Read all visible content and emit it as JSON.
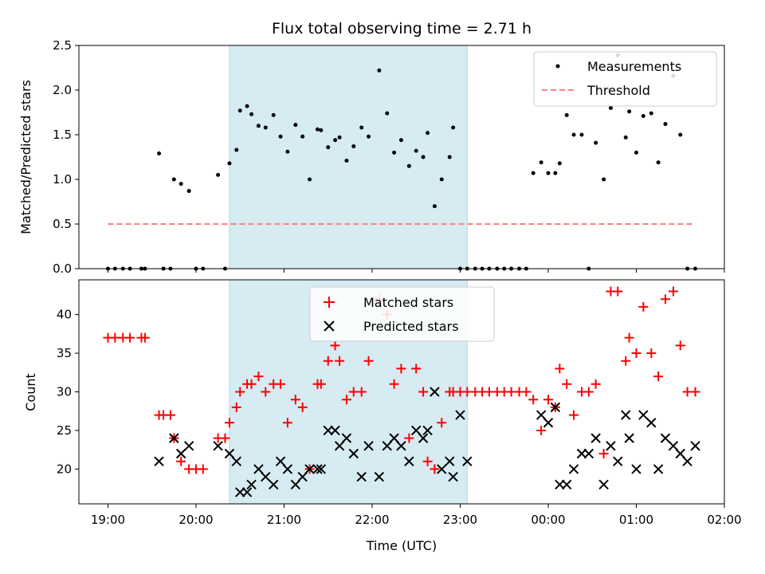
{
  "chart_data": [
    {
      "type": "scatter",
      "title": "Flux total observing time = 2.71 h",
      "xlabel": "",
      "ylabel": "Matched/Predicted stars",
      "ylim": [
        0,
        2.5
      ],
      "yticks": [
        "0.0",
        "0.5",
        "1.0",
        "1.5",
        "2.0",
        "2.5"
      ],
      "highlight_span": {
        "start": 20.38,
        "end": 23.08,
        "color": "#add8e6"
      },
      "legend_placement": "top-right",
      "series": [
        {
          "name": "Measurements",
          "color": "#000000",
          "x": [
            19.0,
            19.08,
            19.17,
            19.25,
            19.38,
            19.42,
            19.58,
            19.63,
            19.71,
            19.75,
            19.83,
            19.92,
            20.0,
            20.08,
            20.25,
            20.33,
            20.38,
            20.46,
            20.5,
            20.58,
            20.63,
            20.71,
            20.79,
            20.88,
            20.96,
            21.04,
            21.13,
            21.21,
            21.29,
            21.38,
            21.42,
            21.5,
            21.58,
            21.63,
            21.71,
            21.79,
            21.88,
            21.96,
            22.08,
            22.17,
            22.25,
            22.33,
            22.42,
            22.5,
            22.58,
            22.63,
            22.71,
            22.79,
            22.88,
            22.92,
            23.0,
            23.08,
            23.17,
            23.25,
            23.33,
            23.42,
            23.5,
            23.58,
            23.67,
            23.75,
            23.83,
            23.92,
            24.0,
            24.08,
            24.13,
            24.21,
            24.29,
            24.38,
            24.46,
            24.54,
            24.63,
            24.71,
            24.79,
            24.88,
            24.92,
            25.0,
            25.08,
            25.17,
            25.25,
            25.33,
            25.42,
            25.5,
            25.58,
            25.67
          ],
          "y": [
            0,
            0,
            0,
            0,
            0,
            0,
            1.29,
            0,
            0,
            1.0,
            0.95,
            0.87,
            0,
            0,
            1.05,
            0,
            1.18,
            1.33,
            1.77,
            1.82,
            1.73,
            1.6,
            1.58,
            1.72,
            1.48,
            1.31,
            1.61,
            1.48,
            1.0,
            1.56,
            1.55,
            1.36,
            1.44,
            1.47,
            1.21,
            1.37,
            1.58,
            1.48,
            2.22,
            1.74,
            1.3,
            1.44,
            1.15,
            1.32,
            1.25,
            1.52,
            0.7,
            1.0,
            1.25,
            1.58,
            0,
            0,
            0,
            0,
            0,
            0,
            0,
            0,
            0,
            0,
            1.07,
            1.19,
            1.07,
            1.07,
            1.18,
            1.72,
            1.5,
            1.5,
            0,
            1.41,
            1.0,
            1.8,
            2.39,
            1.47,
            1.76,
            1.3,
            1.71,
            1.74,
            1.19,
            1.62,
            2.16,
            1.5,
            0,
            0
          ]
        },
        {
          "name": "Threshold",
          "color": "#ff7f7f",
          "x": [
            19.0,
            25.67
          ],
          "y": [
            0.5,
            0.5
          ]
        }
      ]
    },
    {
      "type": "scatter",
      "title": "",
      "xlabel": "Time (UTC)",
      "ylabel": "Count",
      "xlim": [
        18.67,
        26.0
      ],
      "ylim": [
        15.5,
        44.5
      ],
      "yticks": [
        "20",
        "25",
        "30",
        "35",
        "40"
      ],
      "xtick_values": [
        19,
        20,
        21,
        22,
        23,
        24,
        25,
        26
      ],
      "xticks": [
        "19:00",
        "20:00",
        "21:00",
        "22:00",
        "23:00",
        "00:00",
        "01:00",
        "02:00"
      ],
      "highlight_span": {
        "start": 20.38,
        "end": 23.08,
        "color": "#add8e6"
      },
      "legend_placement": "top-center",
      "series": [
        {
          "name": "Matched stars",
          "color": "#ff0000",
          "marker": "+",
          "x": [
            19.0,
            19.08,
            19.17,
            19.25,
            19.38,
            19.42,
            19.58,
            19.63,
            19.71,
            19.75,
            19.83,
            19.92,
            20.0,
            20.08,
            20.25,
            20.33,
            20.38,
            20.46,
            20.5,
            20.58,
            20.63,
            20.71,
            20.79,
            20.88,
            20.96,
            21.04,
            21.13,
            21.21,
            21.29,
            21.38,
            21.42,
            21.5,
            21.58,
            21.63,
            21.71,
            21.79,
            21.88,
            21.96,
            22.08,
            22.17,
            22.25,
            22.33,
            22.42,
            22.5,
            22.58,
            22.63,
            22.71,
            22.79,
            22.88,
            22.92,
            23.0,
            23.08,
            23.17,
            23.25,
            23.33,
            23.42,
            23.5,
            23.58,
            23.67,
            23.75,
            23.83,
            23.92,
            24.0,
            24.08,
            24.13,
            24.21,
            24.29,
            24.38,
            24.46,
            24.54,
            24.63,
            24.71,
            24.79,
            24.88,
            24.92,
            25.0,
            25.08,
            25.17,
            25.25,
            25.33,
            25.42,
            25.5,
            25.58,
            25.67
          ],
          "y": [
            37,
            37,
            37,
            37,
            37,
            37,
            27,
            27,
            27,
            24,
            21,
            20,
            20,
            20,
            24,
            24,
            26,
            28,
            30,
            31,
            31,
            32,
            30,
            31,
            31,
            26,
            29,
            28,
            20,
            31,
            31,
            34,
            36,
            34,
            29,
            30,
            30,
            34,
            42,
            40,
            31,
            33,
            24,
            33,
            30,
            21,
            20,
            26,
            30,
            30,
            30,
            30,
            30,
            30,
            30,
            30,
            30,
            30,
            30,
            30,
            29,
            25,
            29,
            28,
            33,
            31,
            27,
            30,
            30,
            31,
            22,
            43,
            43,
            34,
            37,
            35,
            41,
            35,
            32,
            42,
            43,
            36,
            30,
            30
          ]
        },
        {
          "name": "Predicted stars",
          "color": "#000000",
          "marker": "x",
          "x": [
            19.58,
            19.75,
            19.83,
            19.92,
            20.25,
            20.38,
            20.46,
            20.5,
            20.58,
            20.63,
            20.71,
            20.79,
            20.88,
            20.96,
            21.04,
            21.13,
            21.21,
            21.29,
            21.38,
            21.42,
            21.5,
            21.58,
            21.63,
            21.71,
            21.79,
            21.88,
            21.96,
            22.08,
            22.17,
            22.25,
            22.33,
            22.42,
            22.5,
            22.58,
            22.63,
            22.71,
            22.79,
            22.88,
            22.92,
            23.0,
            23.08,
            23.92,
            24.0,
            24.08,
            24.13,
            24.21,
            24.29,
            24.38,
            24.46,
            24.54,
            24.63,
            24.71,
            24.79,
            24.88,
            24.92,
            25.0,
            25.08,
            25.17,
            25.25,
            25.33,
            25.42,
            25.5,
            25.58,
            25.67
          ],
          "y": [
            21,
            24,
            22,
            23,
            23,
            22,
            21,
            17,
            17,
            18,
            20,
            19,
            18,
            21,
            20,
            18,
            19,
            20,
            20,
            20,
            25,
            25,
            23,
            24,
            22,
            19,
            23,
            19,
            23,
            24,
            23,
            21,
            25,
            24,
            25,
            30,
            20,
            21,
            19,
            27,
            21,
            27,
            26,
            28,
            18,
            18,
            20,
            22,
            22,
            24,
            18,
            23,
            21,
            27,
            24,
            20,
            27,
            26,
            20,
            24,
            23,
            22,
            21,
            23
          ]
        }
      ]
    }
  ]
}
